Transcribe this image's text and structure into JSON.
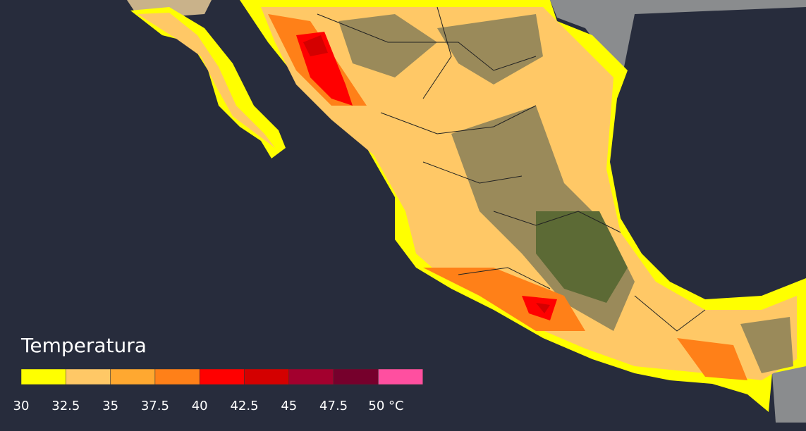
{
  "legend": {
    "title": "Temperatura",
    "colors": [
      "#ffff00",
      "#ffc866",
      "#ffa830",
      "#ff8018",
      "#ff0000",
      "#d40000",
      "#a3002e",
      "#76002c",
      "#ff4fa0"
    ],
    "ticks": [
      30,
      32.5,
      35,
      37.5,
      40,
      42.5,
      45,
      47.5,
      {
        "value": 50,
        "label": "50 °C"
      }
    ]
  }
}
